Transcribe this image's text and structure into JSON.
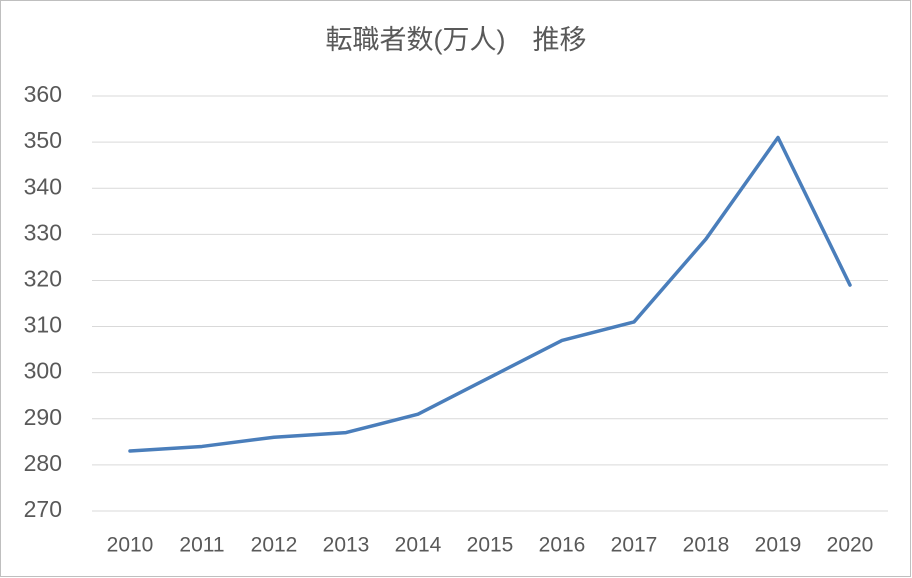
{
  "chart_data": {
    "type": "line",
    "title": "転職者数(万人)　推移",
    "categories": [
      "2010",
      "2011",
      "2012",
      "2013",
      "2014",
      "2015",
      "2016",
      "2017",
      "2018",
      "2019",
      "2020"
    ],
    "values": [
      283,
      284,
      286,
      287,
      291,
      299,
      307,
      311,
      329,
      351,
      319
    ],
    "color": "#4a7ebb",
    "ylim": [
      270,
      360
    ],
    "yticks": [
      270,
      280,
      290,
      300,
      310,
      320,
      330,
      340,
      350,
      360
    ],
    "grid": true
  }
}
